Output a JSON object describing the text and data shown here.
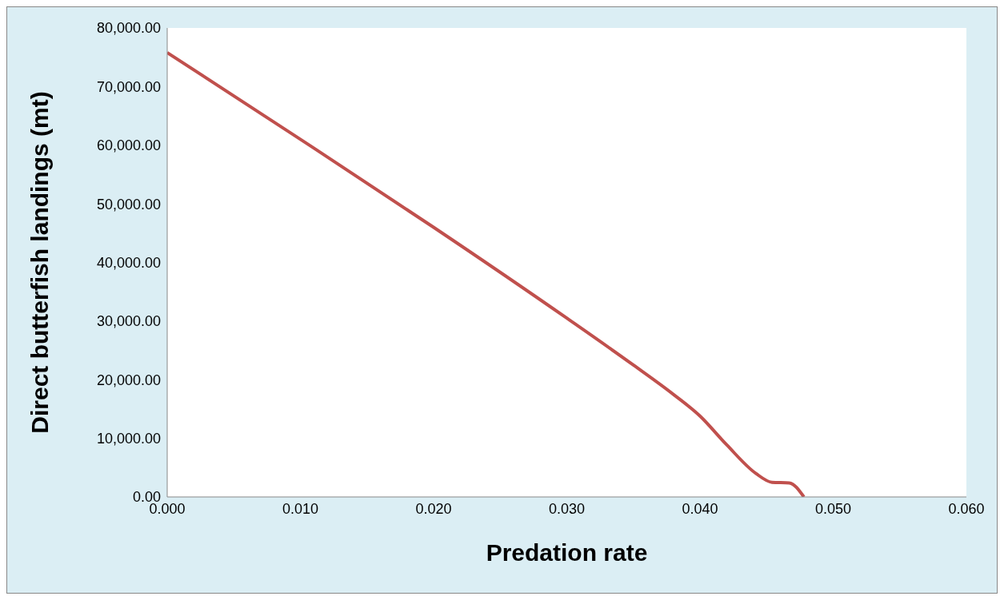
{
  "chart_data": {
    "type": "line",
    "xlabel": "Predation rate",
    "ylabel": "Direct  butterfish  landings  (mt)",
    "x": [
      0,
      0.01,
      0.02,
      0.03,
      0.035,
      0.038,
      0.04,
      0.042,
      0.0442,
      0.0454,
      0.0467,
      0.0478
    ],
    "series": [
      {
        "color": "#c0504d",
        "values": [
          75800,
          61000,
          46000,
          30500,
          22500,
          17500,
          13800,
          8900,
          4000,
          2500,
          2400,
          0
        ]
      }
    ],
    "xlim": [
      0,
      0.06
    ],
    "xticks": [
      {
        "value": 0,
        "label": "0.000"
      },
      {
        "value": 0.01,
        "label": "0.010"
      },
      {
        "value": 0.02,
        "label": "0.020"
      },
      {
        "value": 0.03,
        "label": "0.030"
      },
      {
        "value": 0.04,
        "label": "0.040"
      },
      {
        "value": 0.05,
        "label": "0.050"
      },
      {
        "value": 0.06,
        "label": "0.060"
      }
    ],
    "ylim": [
      0,
      80000
    ],
    "yticks": [
      {
        "value": 0,
        "label": "0.00"
      },
      {
        "value": 10000,
        "label": "10,000.00"
      },
      {
        "value": 20000,
        "label": "20,000.00"
      },
      {
        "value": 30000,
        "label": "30,000.00"
      },
      {
        "value": 40000,
        "label": "40,000.00"
      },
      {
        "value": 50000,
        "label": "50,000.00"
      },
      {
        "value": 60000,
        "label": "60,000.00"
      },
      {
        "value": 70000,
        "label": "70,000.00"
      },
      {
        "value": 80000,
        "label": "80,000.00"
      }
    ],
    "grid": false,
    "legend": false,
    "marker": "none",
    "line_style": "solid"
  }
}
